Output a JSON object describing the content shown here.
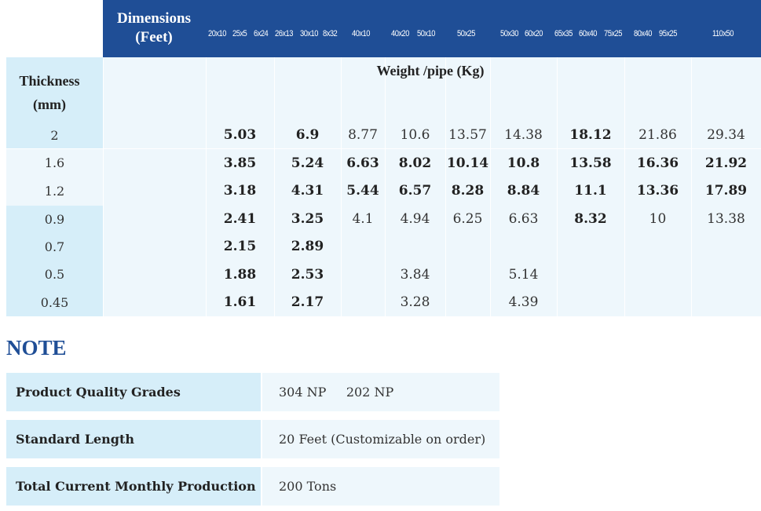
{
  "header": {
    "dimensions_label_1": "Dimensions",
    "dimensions_label_2": "(Feet)",
    "columns": [
      "20x10",
      "25x5",
      "6x24",
      "26x13",
      "30x10",
      "8x32",
      "40x10",
      "40x20",
      "50x10",
      "50x25",
      "50x30",
      "60x20",
      "65x35",
      "60x40",
      "75x25",
      "80x40",
      "95x25",
      "110x50"
    ]
  },
  "thickness_label_1": "Thickness",
  "thickness_label_2": "(mm)",
  "weight_label": "Weight /pipe (Kg)",
  "rows": [
    {
      "thickness": "2",
      "values": [
        "5.03",
        "6.9",
        "8.77",
        "10.6",
        "13.57",
        "14.38",
        "18.12",
        "21.86",
        "29.34"
      ]
    },
    {
      "thickness": "1.6",
      "values": [
        "3.85",
        "5.24",
        "6.63",
        "8.02",
        "10.14",
        "10.8",
        "13.58",
        "16.36",
        "21.92"
      ]
    },
    {
      "thickness": "1.2",
      "values": [
        "3.18",
        "4.31",
        "5.44",
        "6.57",
        "8.28",
        "8.84",
        "11.1",
        "13.36",
        "17.89"
      ]
    },
    {
      "thickness": "0.9",
      "values": [
        "2.41",
        "3.25",
        "4.1",
        "4.94",
        "6.25",
        "6.63",
        "8.32",
        "10",
        "13.38"
      ]
    },
    {
      "thickness": "0.7",
      "values": [
        "2.15",
        "2.89",
        "",
        "",
        "",
        "",
        "",
        "",
        ""
      ]
    },
    {
      "thickness": "0.5",
      "values": [
        "1.88",
        "2.53",
        "",
        "3.84",
        "",
        "5.14",
        "",
        "",
        ""
      ]
    },
    {
      "thickness": "0.45",
      "values": [
        "1.61",
        "2.17",
        "",
        "3.28",
        "",
        "4.39",
        "",
        "",
        ""
      ]
    }
  ],
  "note": {
    "title": "NOTE",
    "items": [
      {
        "label": "Product Quality Grades",
        "value": "304 NP     202 NP"
      },
      {
        "label": "Standard Length",
        "value": "20 Feet (Customizable on order)"
      },
      {
        "label": "Total Current Monthly Production",
        "value": "200 Tons"
      }
    ]
  },
  "colors": {
    "header_blue": "#1f4e96",
    "light_blue": "#d6eef9",
    "pale_blue": "#eef7fc"
  }
}
